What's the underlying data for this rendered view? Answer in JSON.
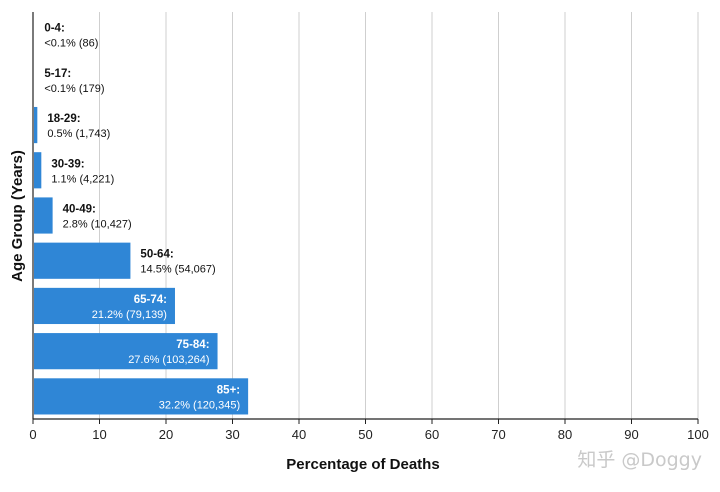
{
  "chart_data": {
    "type": "bar",
    "orientation": "horizontal",
    "xlabel": "Percentage of Deaths",
    "ylabel": "Age Group (Years)",
    "xlim": [
      0,
      100
    ],
    "x_ticks": [
      "0",
      "10",
      "20",
      "30",
      "40",
      "50",
      "60",
      "70",
      "80",
      "90",
      "100"
    ],
    "grid": "vertical",
    "bar_color": "#2f86d6",
    "categories": [
      "0-4:",
      "5-17:",
      "18-29:",
      "30-39:",
      "40-49:",
      "50-64:",
      "65-74:",
      "75-84:",
      "85+:"
    ],
    "values": [
      0.05,
      0.05,
      0.5,
      1.1,
      2.8,
      14.5,
      21.2,
      27.6,
      32.2
    ],
    "value_labels": [
      "<0.1% (86)",
      "<0.1% (179)",
      "0.5% (1,743)",
      "1.1% (4,221)",
      "2.8% (10,427)",
      "14.5% (54,067)",
      "21.2% (79,139)",
      "27.6% (103,264)",
      "32.2% (120,345)"
    ],
    "label_inside": [
      false,
      false,
      false,
      false,
      false,
      false,
      true,
      true,
      true
    ]
  },
  "watermark": "知乎 @Doggy"
}
